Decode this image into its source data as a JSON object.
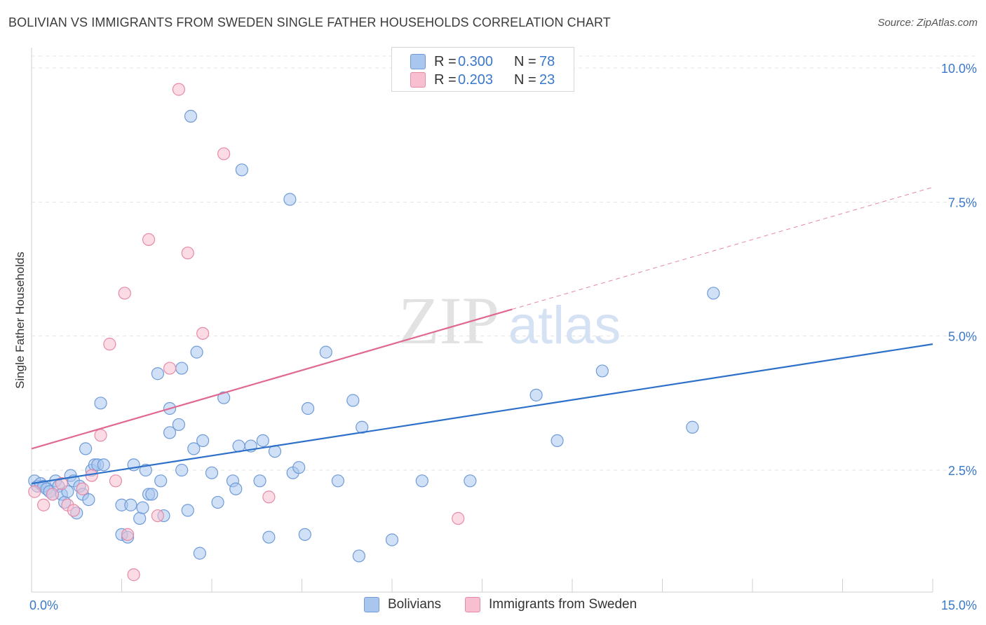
{
  "header": {
    "title": "BOLIVIAN VS IMMIGRANTS FROM SWEDEN SINGLE FATHER HOUSEHOLDS CORRELATION CHART",
    "source": "Source: ZipAtlas.com"
  },
  "watermark": {
    "zip": "ZIP",
    "atlas": "atlas"
  },
  "legend": {
    "rows": [
      {
        "r_label": "R =",
        "r_value": "0.300",
        "n_label": "N =",
        "n_value": "78",
        "color": "#a9c6ef",
        "edge": "#6f9bd8"
      },
      {
        "r_label": "R =",
        "r_value": "0.203",
        "n_label": "N =",
        "n_value": "23",
        "color": "#f7bfd0",
        "edge": "#e68aa7"
      }
    ]
  },
  "bottom_legend": {
    "items": [
      {
        "label": "Bolivians",
        "color": "#a9c6ef",
        "edge": "#6f9bd8"
      },
      {
        "label": "Immigrants from Sweden",
        "color": "#f7bfd0",
        "edge": "#e68aa7"
      }
    ]
  },
  "chart_data": {
    "type": "scatter",
    "title": "BOLIVIAN VS IMMIGRANTS FROM SWEDEN SINGLE FATHER HOUSEHOLDS CORRELATION CHART",
    "ylabel": "Single Father Households",
    "xlabel": "",
    "xlim": [
      0,
      15
    ],
    "ylim": [
      0,
      10.5
    ],
    "x_tick_labels": [
      {
        "value": 0,
        "label": "0.0%"
      },
      {
        "value": 15,
        "label": "15.0%"
      }
    ],
    "y_tick_labels": [
      {
        "value": 2.5,
        "label": "2.5%"
      },
      {
        "value": 5,
        "label": "5.0%"
      },
      {
        "value": 7.5,
        "label": "7.5%"
      },
      {
        "value": 10,
        "label": "10.0%"
      }
    ],
    "grid": true,
    "legend_position": "top-center",
    "series": [
      {
        "name": "Bolivians",
        "color": "#a9c6ef",
        "edge": "#6f9bd8",
        "line_color": "#2d70c9",
        "trend": {
          "x": [
            0,
            15
          ],
          "y": [
            2.25,
            4.85
          ],
          "dashed_x": []
        },
        "points": [
          [
            0.05,
            2.3
          ],
          [
            0.1,
            2.2
          ],
          [
            0.15,
            2.25
          ],
          [
            0.2,
            2.2
          ],
          [
            0.25,
            2.15
          ],
          [
            0.3,
            2.1
          ],
          [
            0.35,
            2.05
          ],
          [
            0.4,
            2.3
          ],
          [
            0.45,
            2.2
          ],
          [
            0.5,
            2.05
          ],
          [
            0.55,
            1.9
          ],
          [
            0.6,
            2.1
          ],
          [
            0.65,
            2.4
          ],
          [
            0.7,
            2.3
          ],
          [
            0.75,
            1.7
          ],
          [
            0.8,
            2.2
          ],
          [
            0.85,
            2.05
          ],
          [
            0.9,
            2.9
          ],
          [
            0.95,
            1.95
          ],
          [
            1.0,
            2.5
          ],
          [
            1.05,
            2.6
          ],
          [
            1.1,
            2.6
          ],
          [
            1.15,
            3.75
          ],
          [
            1.2,
            2.6
          ],
          [
            1.5,
            1.85
          ],
          [
            1.5,
            1.3
          ],
          [
            1.6,
            1.25
          ],
          [
            1.65,
            1.85
          ],
          [
            1.7,
            2.6
          ],
          [
            1.8,
            1.6
          ],
          [
            1.85,
            1.8
          ],
          [
            1.9,
            2.5
          ],
          [
            1.95,
            2.05
          ],
          [
            2.0,
            2.05
          ],
          [
            2.1,
            4.3
          ],
          [
            2.15,
            2.3
          ],
          [
            2.2,
            1.65
          ],
          [
            2.3,
            3.65
          ],
          [
            2.3,
            3.2
          ],
          [
            2.5,
            4.4
          ],
          [
            2.45,
            3.35
          ],
          [
            2.5,
            2.5
          ],
          [
            2.6,
            1.75
          ],
          [
            2.65,
            9.1
          ],
          [
            2.7,
            2.9
          ],
          [
            2.75,
            4.7
          ],
          [
            2.8,
            0.95
          ],
          [
            2.85,
            3.05
          ],
          [
            3.0,
            2.45
          ],
          [
            3.1,
            1.9
          ],
          [
            3.2,
            3.85
          ],
          [
            3.35,
            2.3
          ],
          [
            3.4,
            2.15
          ],
          [
            3.45,
            2.95
          ],
          [
            3.5,
            8.1
          ],
          [
            3.65,
            2.95
          ],
          [
            3.8,
            2.3
          ],
          [
            3.85,
            3.05
          ],
          [
            3.95,
            1.25
          ],
          [
            4.05,
            2.85
          ],
          [
            4.3,
            7.55
          ],
          [
            4.35,
            2.45
          ],
          [
            4.45,
            2.55
          ],
          [
            4.55,
            1.3
          ],
          [
            4.6,
            3.65
          ],
          [
            4.9,
            4.7
          ],
          [
            5.1,
            2.3
          ],
          [
            5.35,
            3.8
          ],
          [
            5.45,
            0.9
          ],
          [
            5.5,
            3.3
          ],
          [
            6.0,
            1.2
          ],
          [
            6.5,
            2.3
          ],
          [
            7.3,
            2.3
          ],
          [
            8.4,
            3.9
          ],
          [
            8.75,
            3.05
          ],
          [
            9.5,
            4.35
          ],
          [
            11.0,
            3.3
          ],
          [
            11.35,
            5.8
          ]
        ]
      },
      {
        "name": "Immigrants from Sweden",
        "color": "#f7bfd0",
        "edge": "#e68aa7",
        "line_color": "#e06990",
        "trend": {
          "x": [
            0,
            8.0
          ],
          "y": [
            2.9,
            5.5
          ],
          "dashed_x": [
            8.0,
            15
          ]
        },
        "points": [
          [
            0.05,
            2.1
          ],
          [
            0.2,
            1.85
          ],
          [
            0.35,
            2.05
          ],
          [
            0.5,
            2.25
          ],
          [
            0.6,
            1.85
          ],
          [
            0.7,
            1.75
          ],
          [
            0.85,
            2.15
          ],
          [
            1.0,
            2.4
          ],
          [
            1.15,
            3.15
          ],
          [
            1.3,
            4.85
          ],
          [
            1.4,
            2.3
          ],
          [
            1.55,
            5.8
          ],
          [
            1.6,
            1.3
          ],
          [
            1.7,
            0.55
          ],
          [
            1.95,
            6.8
          ],
          [
            2.1,
            1.65
          ],
          [
            2.3,
            4.4
          ],
          [
            2.45,
            9.6
          ],
          [
            2.6,
            6.55
          ],
          [
            2.85,
            5.05
          ],
          [
            3.2,
            8.4
          ],
          [
            3.95,
            2.0
          ],
          [
            7.1,
            1.6
          ]
        ]
      }
    ]
  }
}
